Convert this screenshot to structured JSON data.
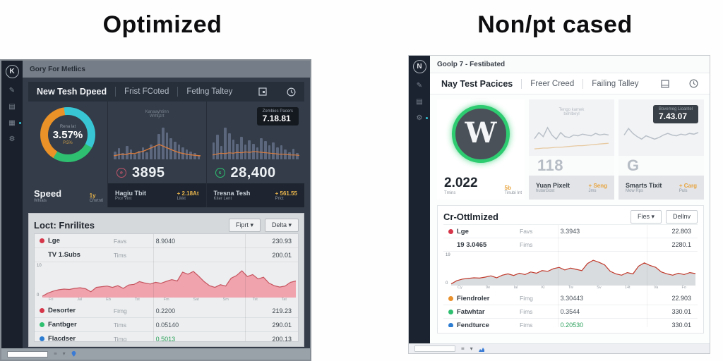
{
  "titles": {
    "left": "Optimized",
    "right": "Non/pt cased"
  },
  "colors": {
    "donut_teal": "#38c6d4",
    "donut_green": "#2fbf71",
    "donut_orange": "#ea9127",
    "bar_gray_blue": "#5c677e",
    "orange_line": "#d77b3f",
    "yellow_accent": "#e8b44c",
    "left_area_fill": "#f0a3ad",
    "left_area_stroke": "#c65560",
    "right_area_fill": "#d9dcdf",
    "right_area_stroke": "#c0392b",
    "wp_green": "#2ecc71",
    "red_dot": "#d63649",
    "green_dot": "#2fbf71",
    "blue_dot": "#2d7dd2",
    "orange_dot": "#e8912d"
  },
  "left": {
    "logo": "K",
    "topbar": "Gory For Metlics",
    "tabs": [
      "New Tesh Dpeed",
      "Frist FCoted",
      "Fetlng Taltey"
    ],
    "donut_card": {
      "label_top": "Rena lat",
      "value": "3.57%",
      "label_bottom": "P.5%",
      "title": "Speed",
      "subtitle": "Whials",
      "right": "1y",
      "right_sub": "Cmrtntl"
    },
    "card2": {
      "chart_label1": "Kanaayhtinn",
      "chart_label2": "Wrhtjzrt",
      "icon": "e",
      "value": "3895",
      "footer_title": "Hagiu Tbit",
      "footer_sub": "Pror Vint",
      "footer_right": "+ 2.18At",
      "footer_right_sub": "Likkt"
    },
    "card3": {
      "tooltip_label": "Zombies Pacers",
      "tooltip_value": "7.18.81",
      "icon": "s",
      "value": "28,400",
      "footer_title": "Tresna Tesh",
      "footer_sub": "Kiter Lent",
      "footer_right": "+ 561.55",
      "footer_right_sub": "Prlct"
    },
    "panel": {
      "title": "Loct: Fnrilites",
      "btn1": "Fiprt ▾",
      "btn2": "Delta ▾",
      "y_top": "10",
      "y_bottom": "0",
      "x_labels": [
        "Fri",
        "Jal",
        "Eb",
        "Tst",
        "Fm",
        "Sat",
        "Sm",
        "Tst",
        "Tat"
      ],
      "rows": [
        {
          "dot": "#d63649",
          "name": "Lge",
          "type": "Favs",
          "v1": "8.9040",
          "v2": "230.93"
        },
        {
          "dot": "",
          "name": "TV 1.Subs",
          "type": "Tims",
          "v1": "",
          "v2": "200.01"
        },
        {
          "dot": "#d63649",
          "name": "Desorter",
          "type": "Fimg",
          "v1": "0.2200",
          "v2": "219.23"
        },
        {
          "dot": "#2fbf71",
          "name": "Fantbger",
          "type": "Tims",
          "v1": "0.05140",
          "v2": "290.01"
        },
        {
          "dot": "#2d7dd2",
          "name": "Flacdser",
          "type": "Timg",
          "v1": "0.5013",
          "v2": "200.13"
        }
      ]
    }
  },
  "right": {
    "logo": "N",
    "topbar": "Goolp 7 - Festibated",
    "tabs": [
      "Nay Test Pacices",
      "Freer Creed",
      "Failing Talley"
    ],
    "wp_card": {
      "letter": "W",
      "value": "2.022",
      "value_sub": "Tmins",
      "right": "5b",
      "right_sub": "Tinubi Int"
    },
    "card2": {
      "chart_label1": "Tengo kamek",
      "chart_label2": "behlbeyl",
      "value": "118",
      "footer_title": "Yuan Pixelt",
      "footer_sub": "hutarGost",
      "footer_right": "+ Seng",
      "footer_right_sub": "Jms"
    },
    "card3": {
      "tooltip_label": "Bovemeg Lioantel",
      "tooltip_value": "7.43.07",
      "value": "G",
      "footer_title": "Smarts Tixit",
      "footer_sub": "Mow Rps",
      "footer_right": "+ Carg",
      "footer_right_sub": "Puls"
    },
    "panel": {
      "title": "Cr-Ottlmized",
      "btn1": "Fies ▾",
      "btn2": "Dellnv",
      "y_top": "19",
      "y_bottom": "0",
      "x_labels": [
        "Cy",
        "9e",
        "Ial",
        "Ki",
        "Tw",
        "Sv",
        "14t",
        "Va",
        "Fo"
      ],
      "rows": [
        {
          "dot": "#d63649",
          "name": "Lge",
          "type": "Favs",
          "v1": "3.3943",
          "v2": "22.803"
        },
        {
          "dot": "",
          "name": "19 3.0465",
          "type": "Fims",
          "v1": "",
          "v2": "2280.1"
        },
        {
          "dot": "#e8912d",
          "name": "Fiendroler",
          "type": "Fimg",
          "v1": "3.30443",
          "v2": "22.903"
        },
        {
          "dot": "#2fbf71",
          "name": "Fatwhtar",
          "type": "Fims",
          "v1": "0.3544",
          "v2": "330.01"
        },
        {
          "dot": "#2d7dd2",
          "name": "Fendturce",
          "type": "Fims",
          "v1": "0.20530",
          "v2": "330.01"
        }
      ]
    }
  },
  "charts": {
    "left_bar1": [
      18,
      26,
      14,
      30,
      22,
      12,
      20,
      28,
      16,
      34,
      30,
      58,
      72,
      62,
      48,
      40,
      34,
      28,
      22,
      18,
      14,
      10
    ],
    "left_line1": [
      8,
      10,
      12,
      11,
      14,
      13,
      16,
      18,
      22,
      26,
      30,
      34,
      30,
      26,
      22,
      18,
      15,
      13,
      11,
      10,
      9,
      8
    ],
    "left_bar2": [
      38,
      56,
      30,
      72,
      60,
      46,
      36,
      52,
      34,
      44,
      36,
      28,
      48,
      42,
      32,
      38,
      28,
      32,
      22,
      16,
      24,
      14
    ],
    "left_line2": [
      10,
      12,
      14,
      13,
      15,
      14,
      16,
      15,
      17,
      16,
      18,
      17,
      16,
      15,
      14,
      13,
      12,
      12,
      11,
      10,
      10,
      9
    ],
    "left_area": [
      0.4,
      1.3,
      1.9,
      2.3,
      2.5,
      2.4,
      2.7,
      2.9,
      2.6,
      1.7,
      3.0,
      3.2,
      3.4,
      3.0,
      3.5,
      2.7,
      3.7,
      3.9,
      4.7,
      4.3,
      4.0,
      4.5,
      4.2,
      4.8,
      5.3,
      4.9,
      7.5,
      6.9,
      7.7,
      6.3,
      4.7,
      3.5,
      3.0,
      3.8,
      3.4,
      5.7,
      6.5,
      7.9,
      6.2,
      6.8,
      5.5,
      6.0,
      4.3,
      3.5,
      3.1,
      3.4,
      4.5,
      4.9
    ],
    "right_line1": [
      35,
      50,
      40,
      62,
      44,
      34,
      50,
      40,
      38,
      44,
      42,
      46,
      44,
      42,
      48,
      44,
      46,
      44
    ],
    "right_line1b": [
      10,
      11,
      12,
      12,
      13,
      14,
      14,
      15,
      16,
      17,
      18,
      18,
      19,
      20,
      21,
      22,
      23,
      24
    ],
    "right_line2": [
      44,
      60,
      48,
      40,
      34,
      42,
      38,
      34,
      38,
      44,
      48,
      44,
      42,
      46,
      44,
      48,
      46,
      50
    ],
    "right_area": [
      0.5,
      1.5,
      2.0,
      2.2,
      2.4,
      2.3,
      2.6,
      3.0,
      2.4,
      3.2,
      3.6,
      3.1,
      3.8,
      3.4,
      4.2,
      3.8,
      4.6,
      4.4,
      5.2,
      5.6,
      4.8,
      5.4,
      5.0,
      4.6,
      6.8,
      7.8,
      7.2,
      6.4,
      4.4,
      3.6,
      3.2,
      4.0,
      3.6,
      6.0,
      7.0,
      6.2,
      5.6,
      4.2,
      3.6,
      3.2,
      3.8,
      3.4,
      4.0,
      3.7
    ]
  }
}
